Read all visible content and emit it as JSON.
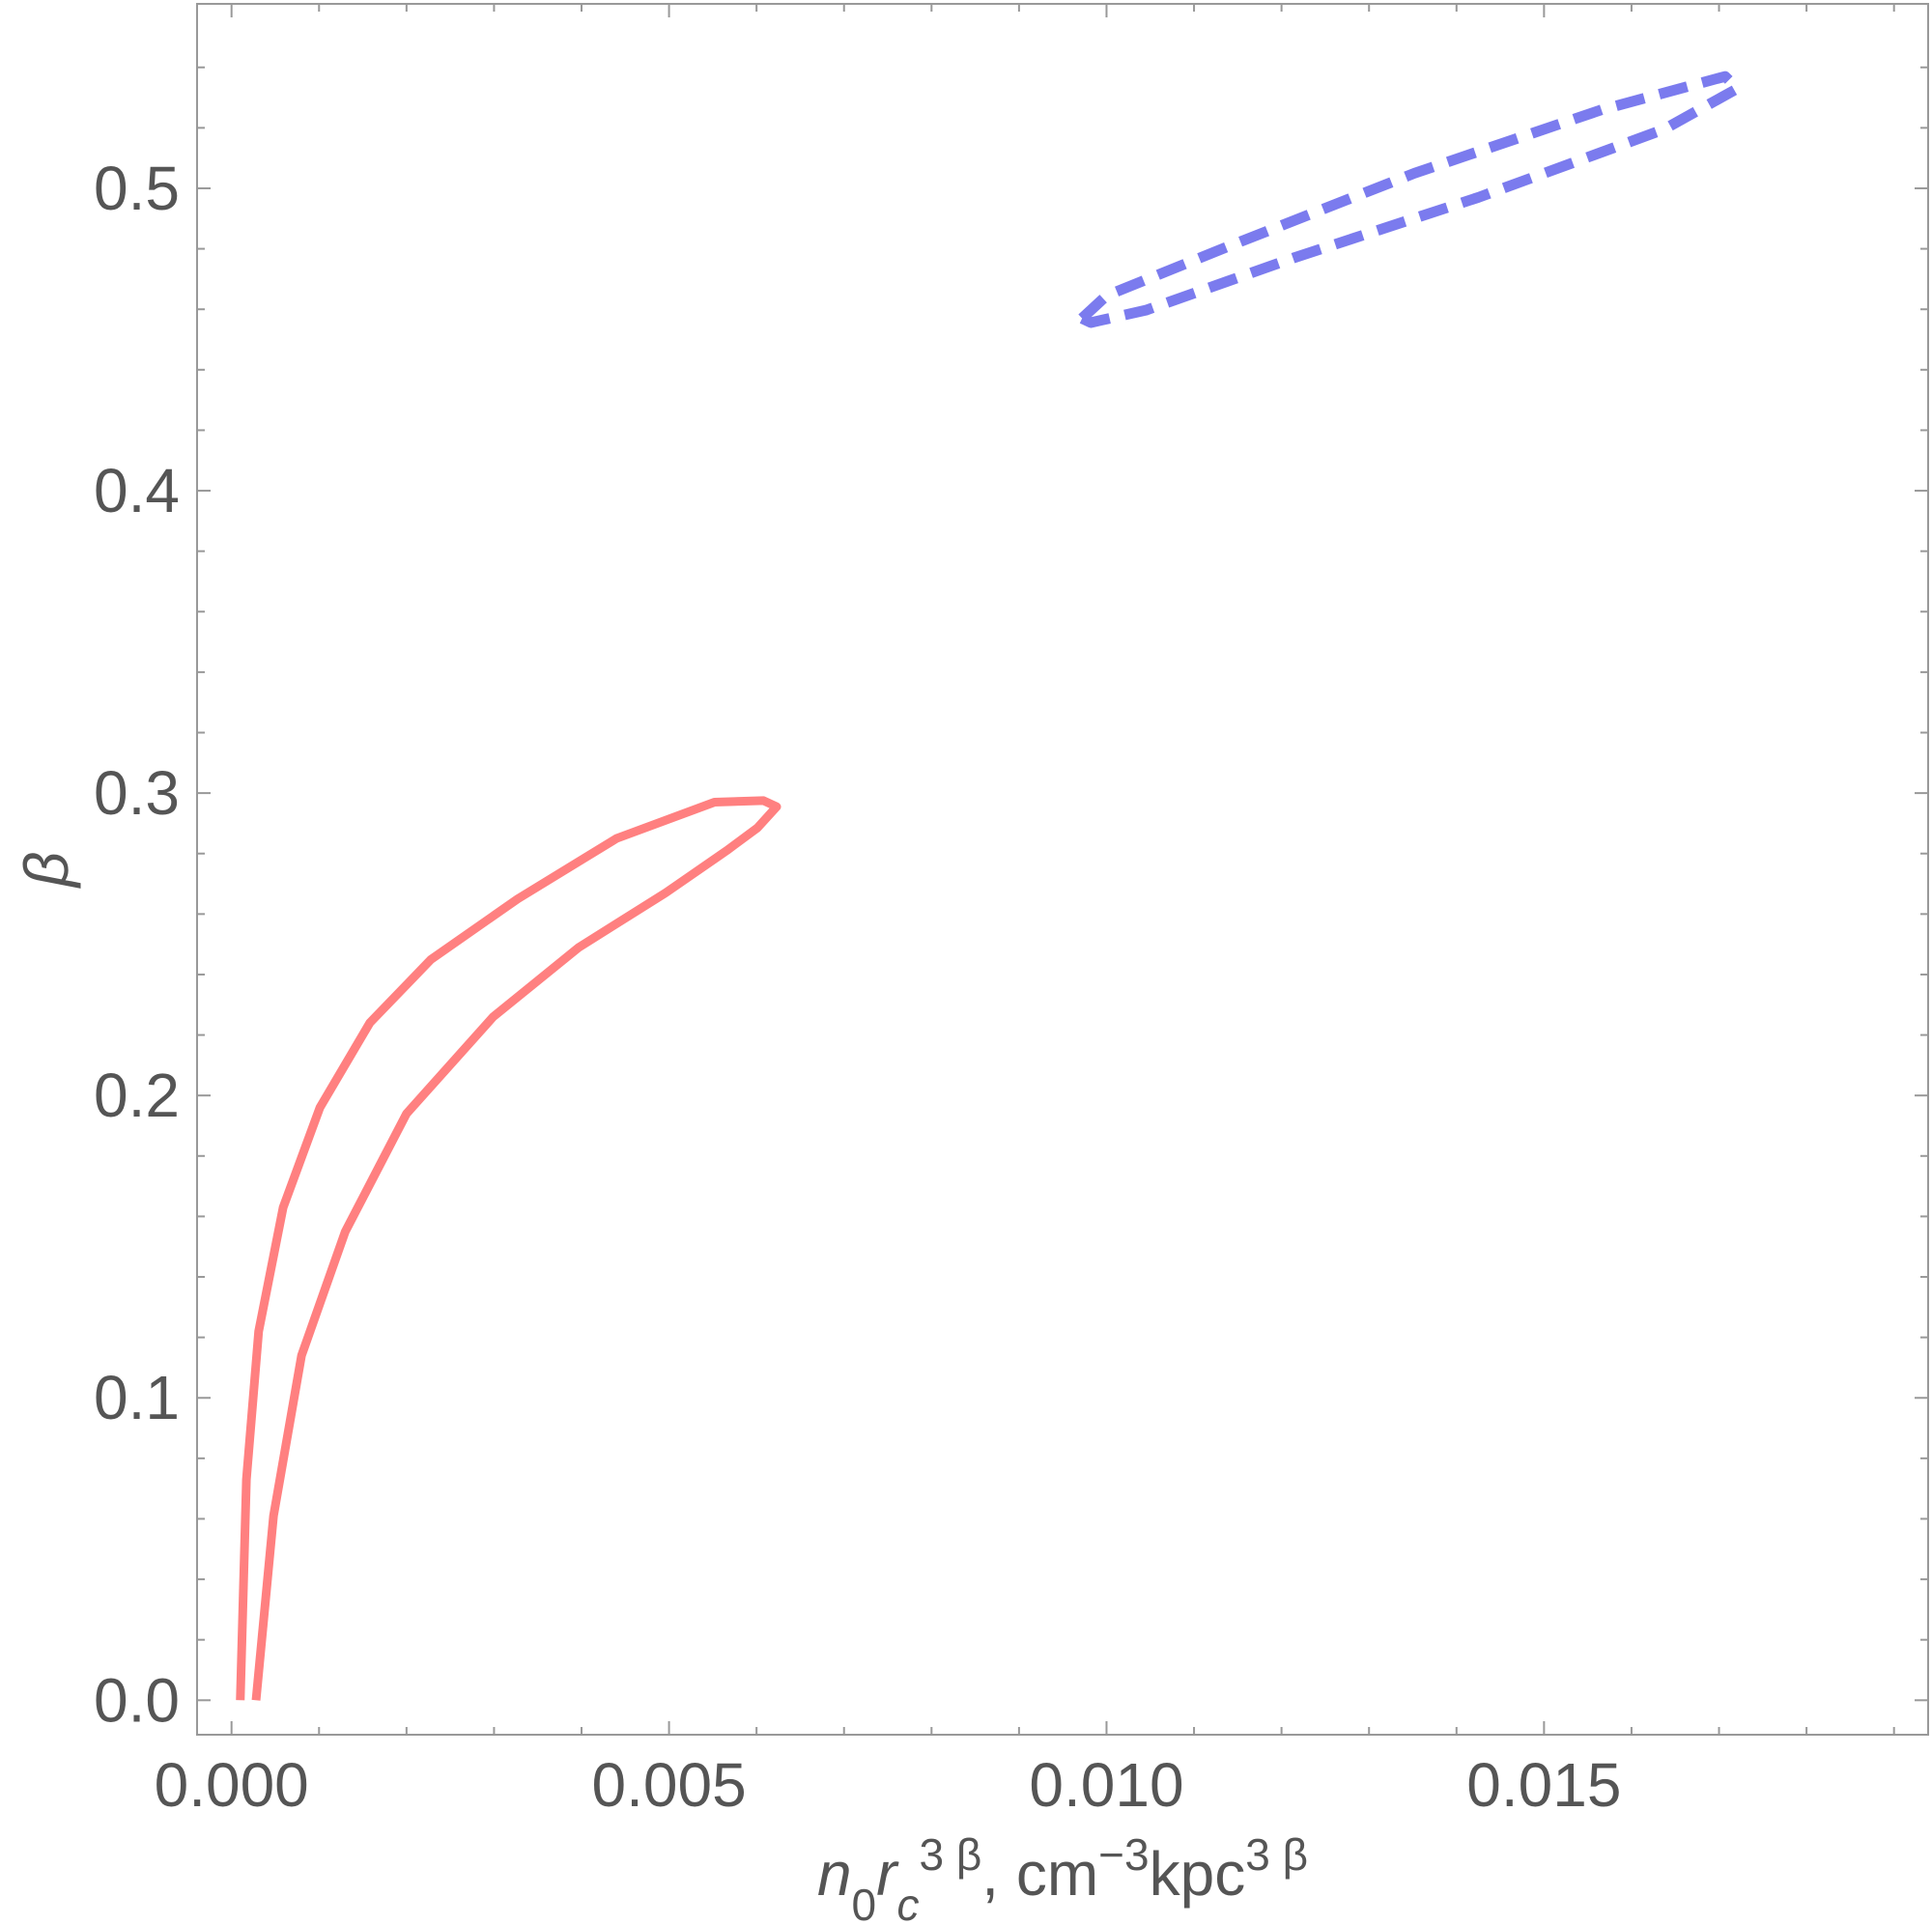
{
  "chart_data": {
    "type": "line",
    "xlabel": [
      {
        "text": "n",
        "style": "italic"
      },
      {
        "text": "0",
        "style": "sub"
      },
      {
        "text": "r",
        "style": "italic"
      },
      {
        "text": "c",
        "style": "sub-italic"
      },
      {
        "text": "3 β",
        "style": "sup"
      },
      {
        "text": ", cm",
        "style": "normal"
      },
      {
        "text": "−3",
        "style": "sup"
      },
      {
        "text": "kpc",
        "style": "normal"
      },
      {
        "text": "3 β",
        "style": "sup"
      }
    ],
    "ylabel": "β",
    "xlim": [
      -0.000394,
      0.01939
    ],
    "ylim": [
      -0.0114,
      0.561
    ],
    "xticks": [
      {
        "value": 0,
        "label": "0.000"
      },
      0.005,
      {
        "value": 0.01,
        "label": "0.010"
      },
      {
        "value": 0.015,
        "label": "0.015"
      }
    ],
    "yticks": [
      {
        "value": 0,
        "label": "0.0"
      },
      0.1,
      0.2,
      0.3,
      0.4,
      0.5
    ],
    "xminorticks": [
      0.001,
      0.002,
      0.003,
      0.004,
      0.006,
      0.007,
      0.008,
      0.009,
      0.011,
      0.012,
      0.013,
      0.014,
      0.016,
      0.017,
      0.018,
      0.019
    ],
    "yminorticks": [
      0.02,
      0.04,
      0.06,
      0.08,
      0.12,
      0.14,
      0.16,
      0.18,
      0.22,
      0.24,
      0.26,
      0.28,
      0.32,
      0.34,
      0.36,
      0.38,
      0.42,
      0.44,
      0.46,
      0.48,
      0.52,
      0.54
    ],
    "series": [
      {
        "color": "#ff8080",
        "dashed": false,
        "x": [
          0.0001,
          0.00017,
          0.00031,
          0.00059,
          0.00101,
          0.00158,
          0.00228,
          0.00327,
          0.0044,
          0.00552,
          0.00608,
          0.00623,
          0.00601,
          0.00566,
          0.00496,
          0.00397,
          0.00299,
          0.002,
          0.0013,
          0.0008,
          0.00048,
          0.00028
        ],
        "values": [
          0.0,
          0.073,
          0.122,
          0.163,
          0.196,
          0.224,
          0.245,
          0.265,
          0.285,
          0.297,
          0.2975,
          0.2955,
          0.2885,
          0.281,
          0.267,
          0.249,
          0.226,
          0.194,
          0.155,
          0.114,
          0.061,
          0.0
        ]
      },
      {
        "color": "#7b7bee",
        "dashed": true,
        "x": [
          0.00972,
          0.01,
          0.01141,
          0.01352,
          0.01566,
          0.01707,
          0.01721,
          0.01637,
          0.01425,
          0.01214,
          0.01045,
          0.00982,
          0.00972
        ],
        "values": [
          0.457,
          0.4645,
          0.481,
          0.505,
          0.526,
          0.537,
          0.533,
          0.5195,
          0.497,
          0.477,
          0.4597,
          0.4556,
          0.457
        ]
      }
    ]
  }
}
